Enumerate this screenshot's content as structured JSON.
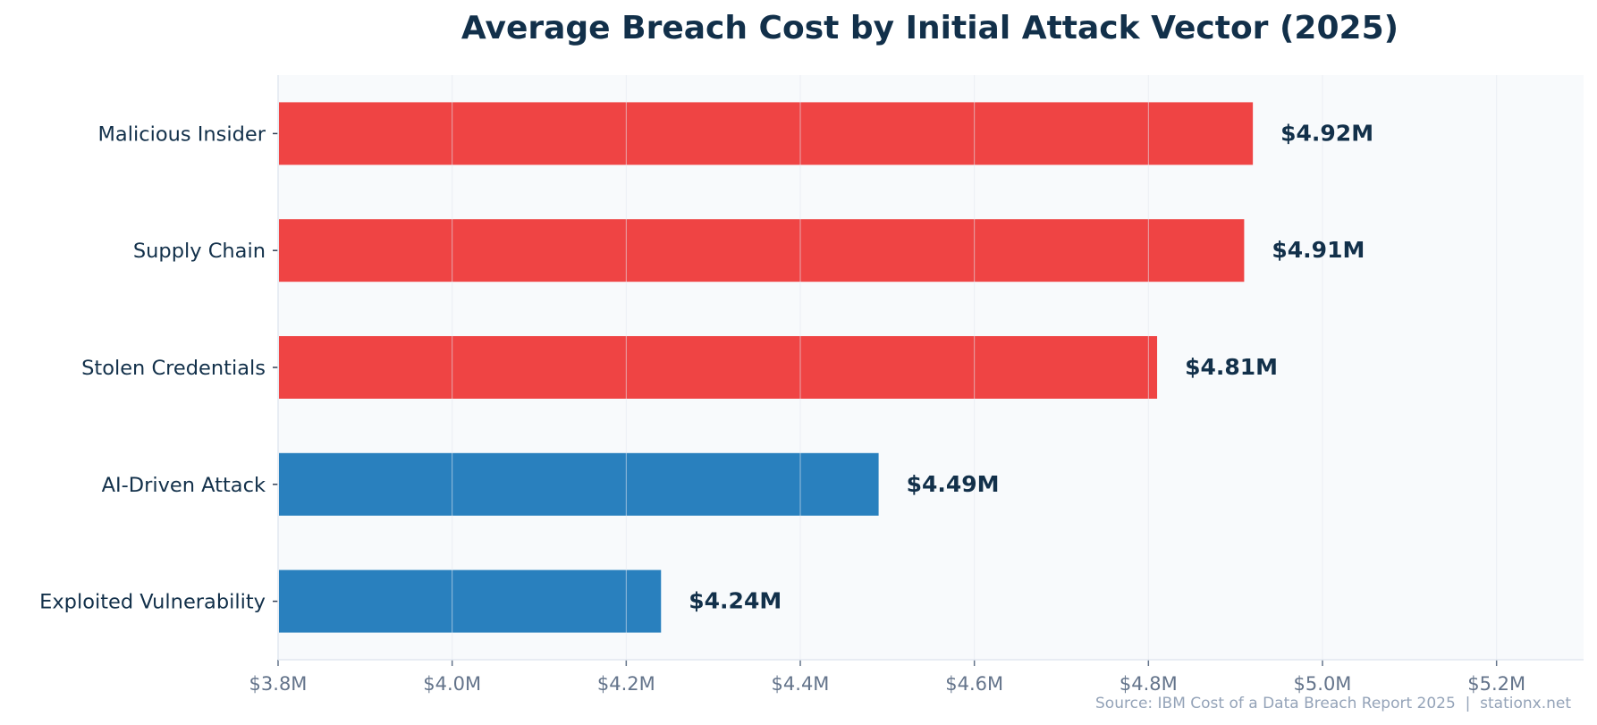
{
  "chart_data": {
    "type": "bar",
    "orientation": "horizontal",
    "title": "Average Breach Cost by Initial Attack Vector (2025)",
    "xlabel": "",
    "ylabel": "",
    "categories": [
      "Malicious Insider",
      "Supply Chain",
      "Stolen Credentials",
      "AI-Driven Attack",
      "Exploited Vulnerability"
    ],
    "values": [
      4.92,
      4.91,
      4.81,
      4.49,
      4.24
    ],
    "value_labels": [
      "$4.92M",
      "$4.91M",
      "$4.81M",
      "$4.49M",
      "$4.24M"
    ],
    "bar_colors": [
      "#EF4444",
      "#EF4444",
      "#EF4444",
      "#2980BE",
      "#2980BE"
    ],
    "xlim": [
      3.8,
      5.3
    ],
    "xticks": [
      3.8,
      4.0,
      4.2,
      4.4,
      4.6,
      4.8,
      5.0,
      5.2
    ],
    "xtick_labels": [
      "$3.8M",
      "$4.0M",
      "$4.2M",
      "$4.4M",
      "$4.6M",
      "$4.8M",
      "$5.0M",
      "$5.2M"
    ],
    "grid": "vertical",
    "source": "Source: IBM Cost of a Data Breach Report 2025  |  stationx.net"
  }
}
